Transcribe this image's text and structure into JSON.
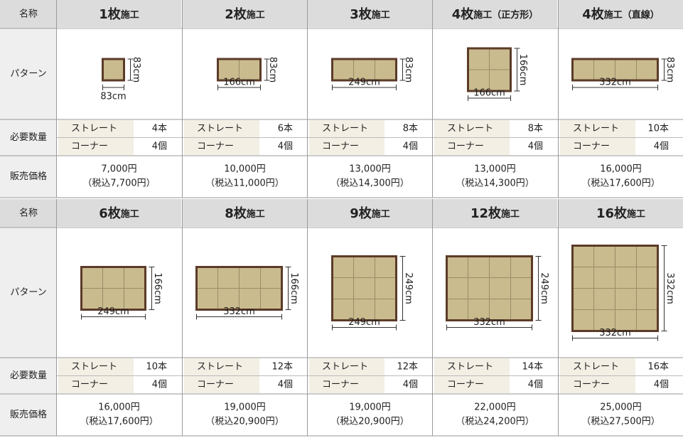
{
  "blocks": [
    {
      "labels": {
        "name": "名称",
        "pattern": "パターン",
        "quantity": "必要数量",
        "price": "販売価格"
      },
      "items": [
        {
          "title_main": "1枚",
          "title_sub": "施工",
          "width": "83cm",
          "height": "83cm",
          "straight_label": "ストレート",
          "straight_qty": "4本",
          "corner_label": "コーナー",
          "corner_qty": "4個",
          "price": "7,000円",
          "price_tax": "（税込7,700円）"
        },
        {
          "title_main": "2枚",
          "title_sub": "施工",
          "width": "166cm",
          "height": "83cm",
          "straight_label": "ストレート",
          "straight_qty": "6本",
          "corner_label": "コーナー",
          "corner_qty": "4個",
          "price": "10,000円",
          "price_tax": "（税込11,000円）"
        },
        {
          "title_main": "3枚",
          "title_sub": "施工",
          "width": "249cm",
          "height": "83cm",
          "straight_label": "ストレート",
          "straight_qty": "8本",
          "corner_label": "コーナー",
          "corner_qty": "4個",
          "price": "13,000円",
          "price_tax": "（税込14,300円）"
        },
        {
          "title_main": "4枚",
          "title_sub": "施工（正方形）",
          "width": "166cm",
          "height": "166cm",
          "straight_label": "ストレート",
          "straight_qty": "8本",
          "corner_label": "コーナー",
          "corner_qty": "4個",
          "price": "13,000円",
          "price_tax": "（税込14,300円）"
        },
        {
          "title_main": "4枚",
          "title_sub": "施工（直線）",
          "width": "332cm",
          "height": "83cm",
          "straight_label": "ストレート",
          "straight_qty": "10本",
          "corner_label": "コーナー",
          "corner_qty": "4個",
          "price": "16,000円",
          "price_tax": "（税込17,600円）"
        }
      ]
    },
    {
      "labels": {
        "name": "名称",
        "pattern": "パターン",
        "quantity": "必要数量",
        "price": "販売価格"
      },
      "items": [
        {
          "title_main": "6枚",
          "title_sub": "施工",
          "width": "249cm",
          "height": "166cm",
          "straight_label": "ストレート",
          "straight_qty": "10本",
          "corner_label": "コーナー",
          "corner_qty": "4個",
          "price": "16,000円",
          "price_tax": "（税込17,600円）"
        },
        {
          "title_main": "8枚",
          "title_sub": "施工",
          "width": "332cm",
          "height": "166cm",
          "straight_label": "ストレート",
          "straight_qty": "12本",
          "corner_label": "コーナー",
          "corner_qty": "4個",
          "price": "19,000円",
          "price_tax": "（税込20,900円）"
        },
        {
          "title_main": "9枚",
          "title_sub": "施工",
          "width": "249cm",
          "height": "249cm",
          "straight_label": "ストレート",
          "straight_qty": "12本",
          "corner_label": "コーナー",
          "corner_qty": "4個",
          "price": "19,000円",
          "price_tax": "（税込20,900円）"
        },
        {
          "title_main": "12枚",
          "title_sub": "施工",
          "width": "332cm",
          "height": "249cm",
          "straight_label": "ストレート",
          "straight_qty": "14本",
          "corner_label": "コーナー",
          "corner_qty": "4個",
          "price": "22,000円",
          "price_tax": "（税込24,200円）"
        },
        {
          "title_main": "16枚",
          "title_sub": "施工",
          "width": "332cm",
          "height": "332cm",
          "straight_label": "ストレート",
          "straight_qty": "16本",
          "corner_label": "コーナー",
          "corner_qty": "4個",
          "price": "25,000円",
          "price_tax": "（税込27,500円）"
        }
      ]
    }
  ]
}
